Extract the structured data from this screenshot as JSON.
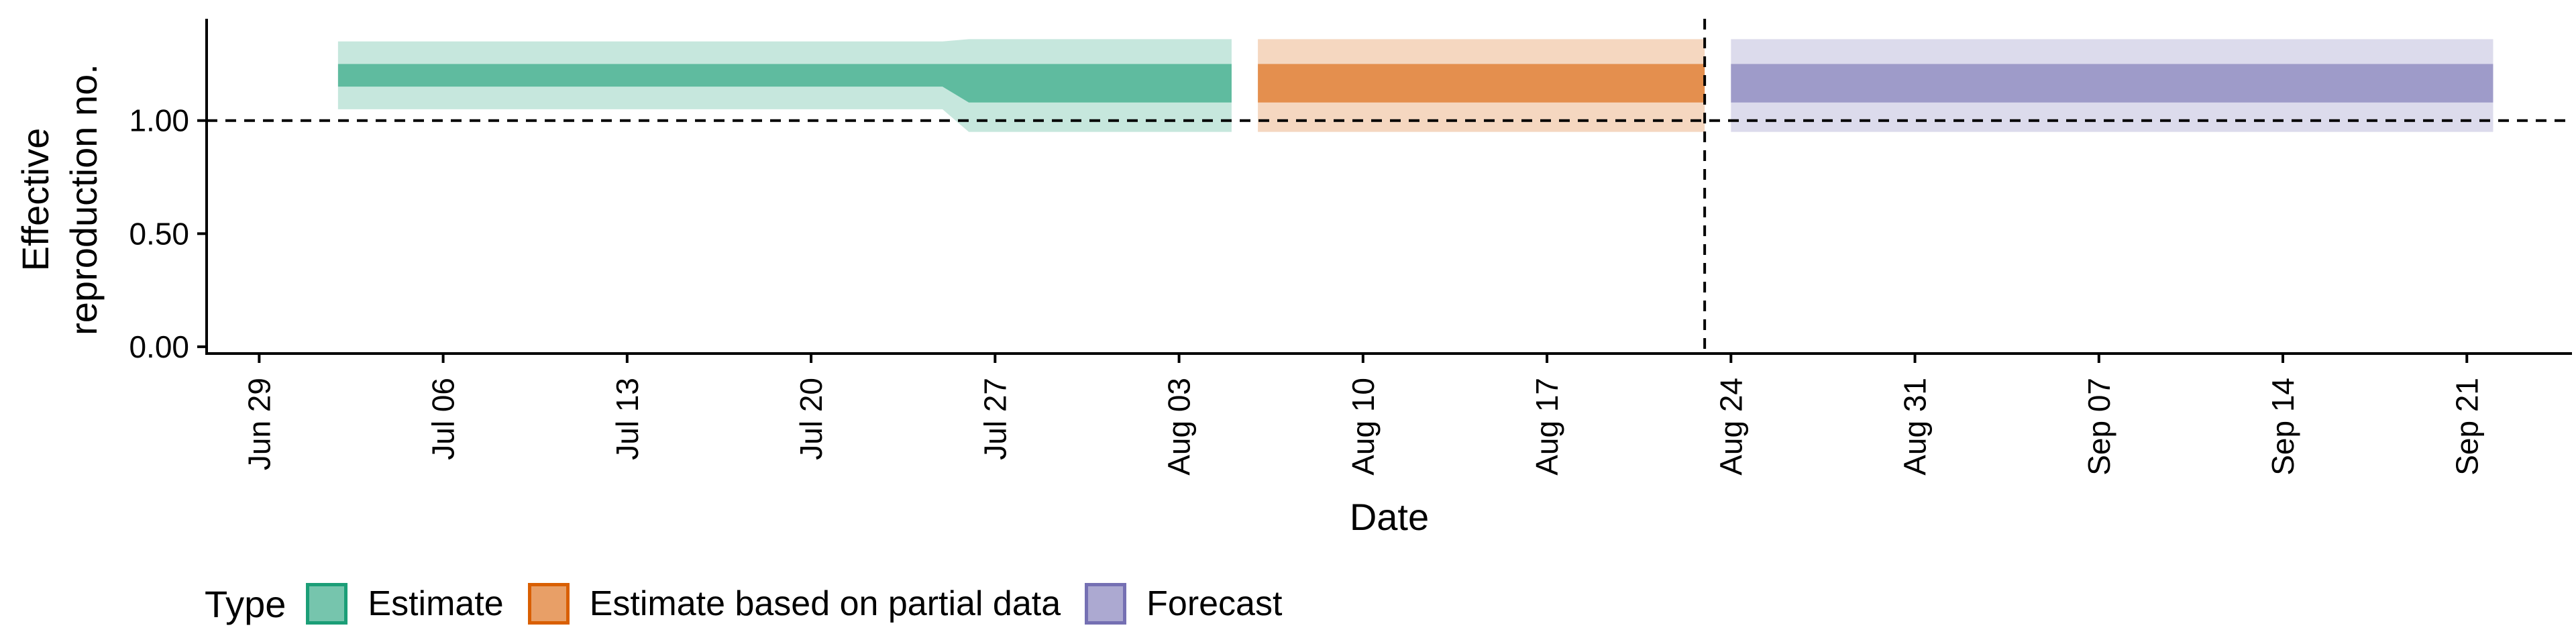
{
  "chart_data": {
    "type": "area",
    "xlabel": "Date",
    "ylabel_lines": [
      "Effective",
      "reproduction no."
    ],
    "y_ticks": [
      "0.00",
      "0.50",
      "1.00"
    ],
    "y_tick_values": [
      0,
      0.5,
      1.0
    ],
    "ylim": [
      -0.03,
      1.45
    ],
    "xlim": [
      "2020-06-27",
      "2020-09-25"
    ],
    "x_ticks": [
      {
        "date": "2020-06-29",
        "label": "Jun 29"
      },
      {
        "date": "2020-07-06",
        "label": "Jul 06"
      },
      {
        "date": "2020-07-13",
        "label": "Jul 13"
      },
      {
        "date": "2020-07-20",
        "label": "Jul 20"
      },
      {
        "date": "2020-07-27",
        "label": "Jul 27"
      },
      {
        "date": "2020-08-03",
        "label": "Aug 03"
      },
      {
        "date": "2020-08-10",
        "label": "Aug 10"
      },
      {
        "date": "2020-08-17",
        "label": "Aug 17"
      },
      {
        "date": "2020-08-24",
        "label": "Aug 24"
      },
      {
        "date": "2020-08-31",
        "label": "Aug 31"
      },
      {
        "date": "2020-09-07",
        "label": "Sep 07"
      },
      {
        "date": "2020-09-14",
        "label": "Sep 14"
      },
      {
        "date": "2020-09-21",
        "label": "Sep 21"
      }
    ],
    "reference_line_y": 1.0,
    "vertical_line_x": "2020-08-23",
    "grid": false,
    "legend_position": "bottom-left",
    "legend_title": "Type",
    "series": [
      {
        "name": "Estimate",
        "color": "#1b9e77",
        "points": [
          {
            "x": "2020-07-02",
            "outer": [
              1.05,
              1.35
            ],
            "inner": [
              1.15,
              1.25
            ]
          },
          {
            "x": "2020-07-25",
            "outer": [
              1.05,
              1.35
            ],
            "inner": [
              1.15,
              1.25
            ]
          },
          {
            "x": "2020-07-26",
            "outer": [
              0.95,
              1.36
            ],
            "inner": [
              1.08,
              1.25
            ]
          },
          {
            "x": "2020-08-05",
            "outer": [
              0.95,
              1.36
            ],
            "inner": [
              1.08,
              1.25
            ]
          }
        ]
      },
      {
        "name": "Estimate based on partial data",
        "color": "#d95f02",
        "points": [
          {
            "x": "2020-08-06",
            "outer": [
              0.95,
              1.36
            ],
            "inner": [
              1.08,
              1.25
            ]
          },
          {
            "x": "2020-08-23",
            "outer": [
              0.95,
              1.36
            ],
            "inner": [
              1.08,
              1.25
            ]
          }
        ]
      },
      {
        "name": "Forecast",
        "color": "#7570b3",
        "points": [
          {
            "x": "2020-08-24",
            "outer": [
              0.95,
              1.36
            ],
            "inner": [
              1.08,
              1.25
            ]
          },
          {
            "x": "2020-09-22",
            "outer": [
              0.95,
              1.36
            ],
            "inner": [
              1.08,
              1.25
            ]
          }
        ]
      }
    ]
  }
}
